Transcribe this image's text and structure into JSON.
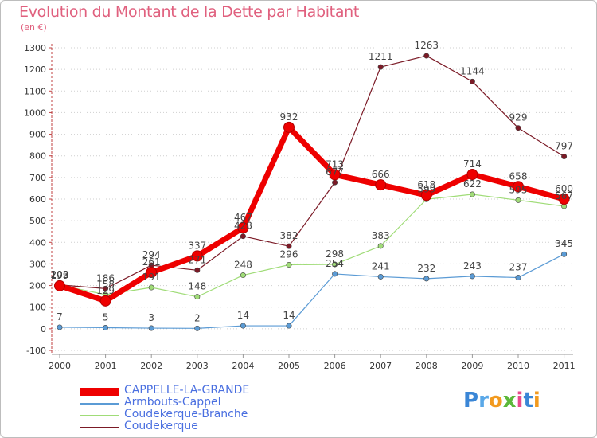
{
  "title": "Evolution du Montant de la Dette par Habitant",
  "subtitle": "(en €)",
  "logo": "Proxiti",
  "chart_data": {
    "type": "line",
    "title": "Evolution du Montant de la Dette par Habitant",
    "ylabel": "(en €)",
    "xlabel": "",
    "ylim": [
      -100,
      1300
    ],
    "yticks": [
      "-100",
      "0",
      "100",
      "200",
      "300",
      "400",
      "500",
      "600",
      "700",
      "800",
      "900",
      "1000",
      "1100",
      "1200",
      "1300"
    ],
    "categories": [
      "2000",
      "2001",
      "2002",
      "2003",
      "2004",
      "2005",
      "2006",
      "2007",
      "2008",
      "2009",
      "2010",
      "2011"
    ],
    "grid": "horizontal-dotted",
    "legend_position": "bottom-left",
    "series": [
      {
        "name": "CAPPELLE-LA-GRANDE",
        "color": "#ee0000",
        "values": [
          199,
          129,
          261,
          337,
          467,
          932,
          713,
          666,
          618,
          714,
          658,
          600
        ],
        "labels": [
          "199",
          "129",
          "261",
          "337",
          "467",
          "932",
          "713",
          "666",
          "618",
          "714",
          "658",
          "600"
        ]
      },
      {
        "name": "Armbouts-Cappel",
        "color": "#5b9bd5",
        "values": [
          7,
          5,
          3,
          2,
          14,
          14,
          254,
          241,
          232,
          243,
          237,
          345
        ],
        "labels": [
          "7",
          "5",
          "3",
          "2",
          "14",
          "14",
          "254",
          "241",
          "232",
          "243",
          "237",
          "345"
        ]
      },
      {
        "name": "Coudekerque-Branche",
        "color": "#a0dc78",
        "values": [
          202,
          158,
          191,
          148,
          248,
          296,
          298,
          383,
          599,
          622,
          595,
          567
        ],
        "labels": [
          "202",
          "158",
          "191",
          "148",
          "248",
          "296",
          "298",
          "383",
          "599",
          "622",
          "595",
          "567"
        ]
      },
      {
        "name": "Coudekerque",
        "color": "#7b1a26",
        "values": [
          203,
          186,
          294,
          271,
          428,
          382,
          677,
          1211,
          1263,
          1144,
          929,
          797
        ],
        "labels": [
          "203",
          "186",
          "294",
          "271",
          "428",
          "382",
          "677",
          "1211",
          "1263",
          "1144",
          "929",
          "797"
        ]
      }
    ]
  },
  "legend": [
    {
      "label": "CAPPELLE-LA-GRANDE",
      "color": "#ee0000",
      "thick": true
    },
    {
      "label": "Armbouts-Cappel",
      "color": "#5b9bd5",
      "thick": false
    },
    {
      "label": "Coudekerque-Branche",
      "color": "#a0dc78",
      "thick": false
    },
    {
      "label": "Coudekerque",
      "color": "#7b1a26",
      "thick": false
    }
  ]
}
